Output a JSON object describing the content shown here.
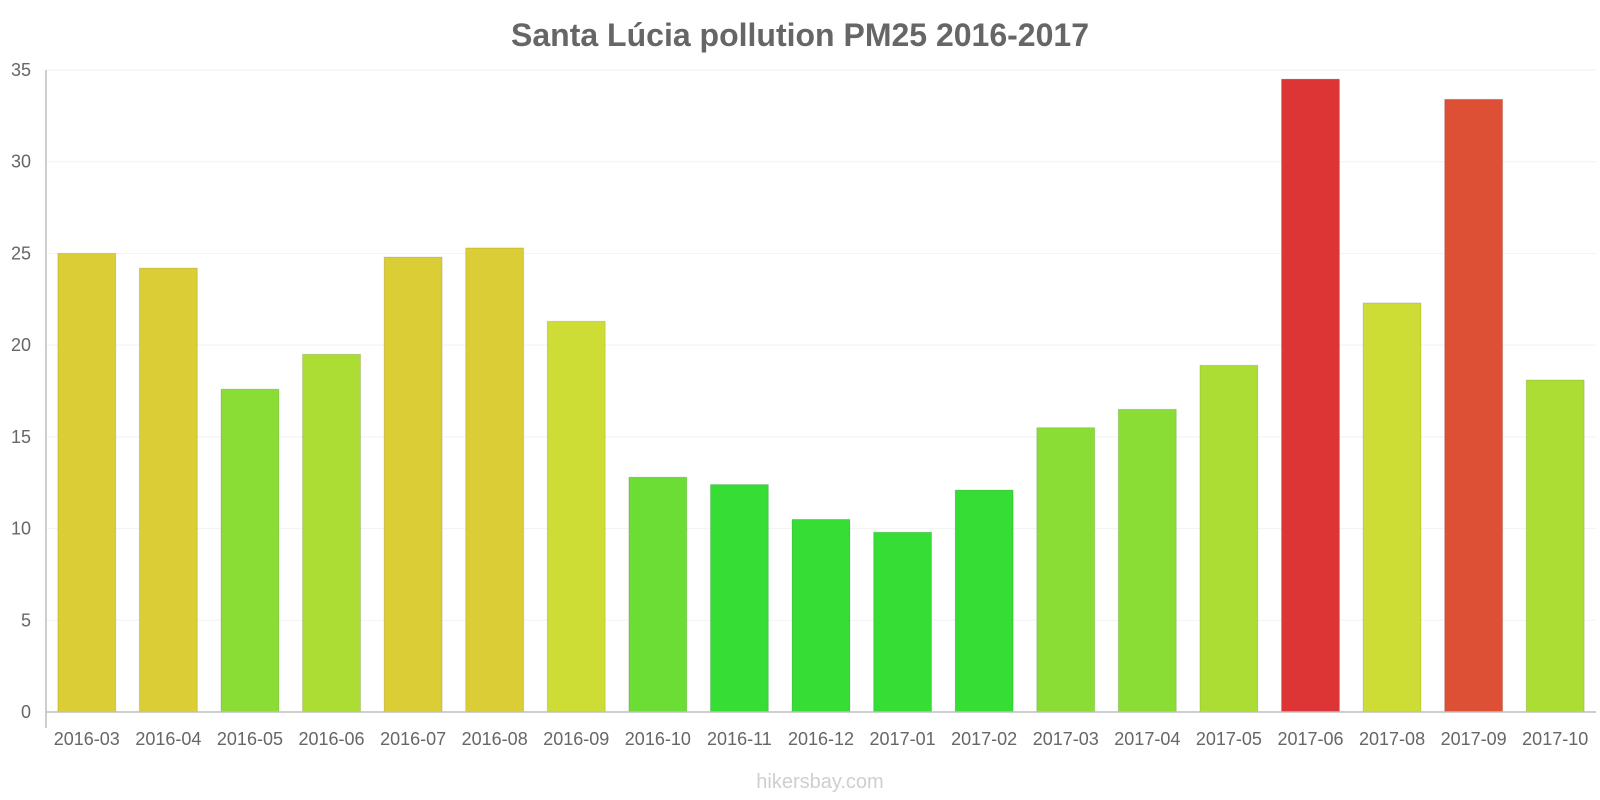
{
  "chart_data": {
    "type": "bar",
    "title": "Santa Lúcia pollution PM25 2016-2017",
    "xlabel": "",
    "ylabel": "",
    "ylim": [
      0,
      35
    ],
    "yticks": [
      0,
      5,
      10,
      15,
      20,
      25,
      30,
      35
    ],
    "grid": true,
    "categories": [
      "2016-03",
      "2016-04",
      "2016-05",
      "2016-06",
      "2016-07",
      "2016-08",
      "2016-09",
      "2016-10",
      "2016-11",
      "2016-12",
      "2017-01",
      "2017-02",
      "2017-03",
      "2017-04",
      "2017-05",
      "2017-06",
      "2017-08",
      "2017-09",
      "2017-10"
    ],
    "values": [
      25.0,
      24.2,
      17.6,
      19.5,
      24.8,
      25.3,
      21.3,
      12.8,
      12.4,
      10.5,
      9.8,
      12.1,
      15.5,
      16.5,
      18.9,
      34.5,
      22.3,
      33.4,
      18.1
    ],
    "colors": [
      "#dbcd35",
      "#dbcd35",
      "#8add35",
      "#acdd35",
      "#dbcd35",
      "#dbcd35",
      "#cddd35",
      "#6cdd35",
      "#35dd35",
      "#35dd35",
      "#35dd35",
      "#35dd35",
      "#8add35",
      "#8add35",
      "#acdd35",
      "#dd3535",
      "#cddd35",
      "#dd5035",
      "#acdd35"
    ]
  },
  "watermark": "hikersbay.com"
}
